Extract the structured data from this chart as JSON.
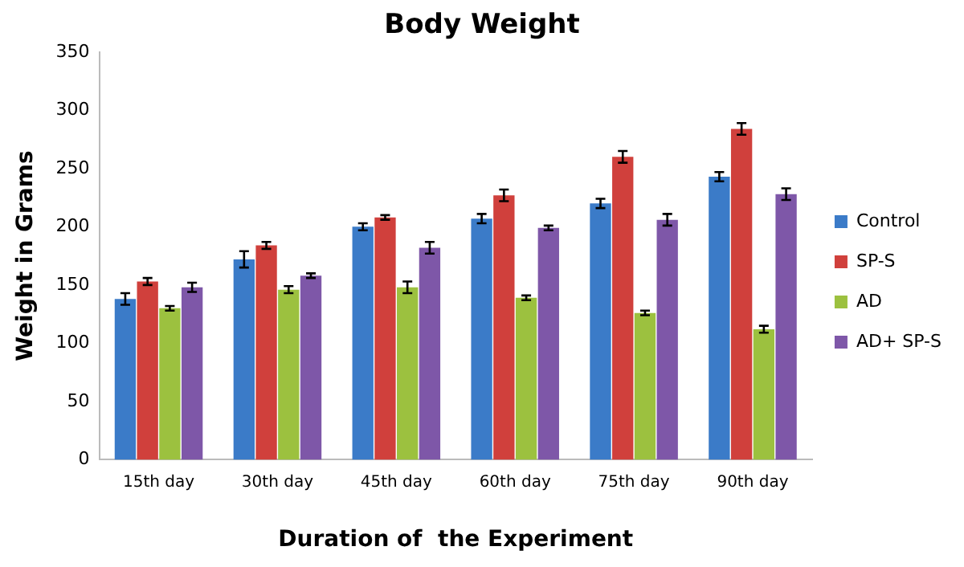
{
  "chart_data": {
    "type": "bar",
    "title": "Body Weight",
    "xlabel": "Duration of  the Experiment",
    "ylabel": "Weight in Grams",
    "categories": [
      "15th day",
      "30th day",
      "45th day",
      "60th day",
      "75th day",
      "90th day"
    ],
    "series": [
      {
        "name": "Control",
        "color": "#3b7bc8",
        "values": [
          138,
          172,
          200,
          207,
          220,
          243
        ],
        "errors": [
          5,
          7,
          3,
          4,
          4,
          4
        ]
      },
      {
        "name": "SP-S",
        "color": "#d0403c",
        "values": [
          153,
          184,
          208,
          227,
          260,
          284
        ],
        "errors": [
          3,
          3,
          2,
          5,
          5,
          5
        ]
      },
      {
        "name": "AD",
        "color": "#9cc13f",
        "values": [
          130,
          146,
          148,
          139,
          126,
          112
        ],
        "errors": [
          2,
          3,
          5,
          2,
          2,
          3
        ]
      },
      {
        "name": "AD+ SP-S",
        "color": "#7e57a8",
        "values": [
          148,
          158,
          182,
          199,
          206,
          228
        ],
        "errors": [
          4,
          2,
          5,
          2,
          5,
          5
        ]
      }
    ],
    "ylim": [
      0,
      350
    ],
    "yticks": [
      0,
      50,
      100,
      150,
      200,
      250,
      300,
      350
    ],
    "grid": false,
    "legend": "right"
  }
}
